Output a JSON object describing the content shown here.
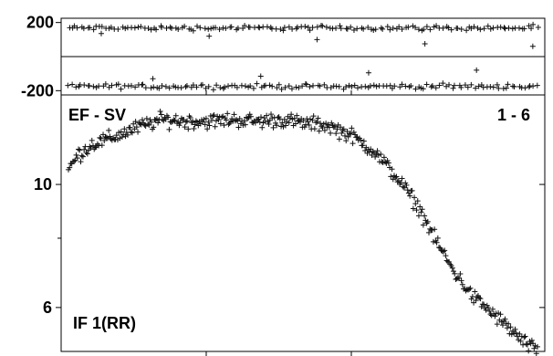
{
  "chart_data": {
    "type": "scatter",
    "title": "",
    "xlabel": "",
    "ylabel": "",
    "grid": false,
    "panels": [
      {
        "name": "phase",
        "ylim": [
          -225,
          225
        ],
        "y_ticks": [
          200,
          -200
        ],
        "y_tick_labels": [
          "200",
          "-200"
        ],
        "series_description": "two bands of points near +170 and -170",
        "bands": [
          {
            "center": 168,
            "scatter": 12,
            "outliers": [
              135,
              120,
              100,
              75,
              60
            ]
          },
          {
            "center": -175,
            "scatter": 12,
            "outliers": [
              -130,
              -115,
              -95,
              -80
            ]
          }
        ]
      },
      {
        "name": "amplitude",
        "y_scale": "log",
        "ylim": [
          5,
          14.5
        ],
        "y_ticks": [
          10,
          6
        ],
        "y_tick_labels": [
          "10",
          "6"
        ],
        "minor_ticks": [
          8
        ],
        "x_ticks": [
          0.3,
          0.6
        ],
        "labels": {
          "top_left": "EF - SV",
          "top_right": "1 - 6",
          "bottom_left": "IF 1(RR)"
        },
        "profile": [
          [
            0.0,
            10.6
          ],
          [
            0.02,
            11.3
          ],
          [
            0.05,
            11.8
          ],
          [
            0.1,
            12.2
          ],
          [
            0.15,
            12.7
          ],
          [
            0.2,
            13.1
          ],
          [
            0.25,
            13.0
          ],
          [
            0.3,
            13.0
          ],
          [
            0.35,
            13.1
          ],
          [
            0.4,
            13.0
          ],
          [
            0.45,
            13.1
          ],
          [
            0.5,
            12.9
          ],
          [
            0.55,
            12.8
          ],
          [
            0.6,
            12.3
          ],
          [
            0.65,
            11.5
          ],
          [
            0.7,
            10.3
          ],
          [
            0.75,
            9.0
          ],
          [
            0.78,
            8.0
          ],
          [
            0.82,
            7.0
          ],
          [
            0.86,
            6.3
          ],
          [
            0.9,
            5.9
          ],
          [
            0.94,
            5.5
          ],
          [
            0.97,
            5.2
          ],
          [
            1.0,
            5.0
          ]
        ]
      }
    ]
  }
}
